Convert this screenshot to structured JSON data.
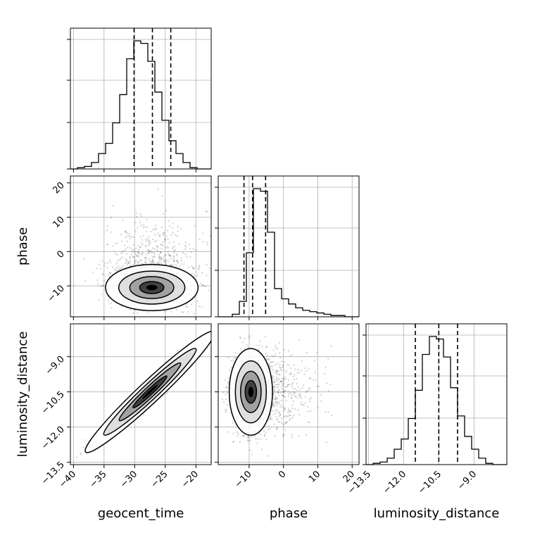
{
  "chart_data": {
    "type": "corner",
    "parameters": [
      "geocent_time",
      "phase",
      "luminosity_distance"
    ],
    "axis_labels": {
      "geocent_time": "geocent_time",
      "phase": "phase",
      "luminosity_distance": "luminosity_distance"
    },
    "ranges": {
      "geocent_time": [
        -40.5,
        -17.5
      ],
      "phase": [
        -19,
        22
      ],
      "luminosity_distance": [
        -13.6,
        -7.6
      ]
    },
    "ticks": {
      "geocent_time": {
        "values": [
          -40,
          -35,
          -30,
          -25,
          -20
        ],
        "labels": [
          "−40",
          "−35",
          "−30",
          "−25",
          "−20"
        ]
      },
      "phase_x": {
        "values": [
          -10,
          0,
          10,
          20
        ],
        "labels": [
          "−10",
          "0",
          "10",
          "20"
        ]
      },
      "phase_y": {
        "values": [
          -10,
          0,
          10,
          20
        ],
        "labels": [
          "−10",
          "0",
          "10",
          "20"
        ]
      },
      "luminosity_distance": {
        "values": [
          -13.5,
          -12.0,
          -10.5,
          -9.0
        ],
        "labels": [
          "−13.5",
          "−12.0",
          "−10.5",
          "−9.0"
        ]
      }
    },
    "histograms": {
      "geocent_time": {
        "edges_range": [
          -40.5,
          -17.5
        ],
        "counts": [
          0,
          1,
          2,
          5,
          12,
          20,
          36,
          58,
          86,
          100,
          98,
          84,
          60,
          38,
          22,
          12,
          5,
          1,
          0,
          0
        ],
        "quantiles": [
          -30.1,
          -27.1,
          -24.1
        ]
      },
      "phase": {
        "edges_range": [
          -19,
          22
        ],
        "counts": [
          0,
          0,
          2,
          12,
          50,
          100,
          98,
          66,
          22,
          14,
          10,
          7,
          5,
          4,
          3,
          2,
          1,
          1,
          0,
          0
        ],
        "quantiles": [
          -11.5,
          -9.0,
          -5.2
        ]
      },
      "luminosity_distance": {
        "edges_range": [
          -13.6,
          -7.6
        ],
        "counts": [
          0,
          1,
          2,
          5,
          12,
          20,
          36,
          58,
          86,
          100,
          98,
          84,
          60,
          38,
          22,
          12,
          5,
          1,
          0,
          0
        ],
        "quantiles": [
          -11.5,
          -10.5,
          -9.7
        ]
      }
    },
    "pairs": [
      {
        "x": "geocent_time",
        "y": "phase",
        "center": [
          -27.2,
          -10.5
        ],
        "spread": [
          3.6,
          3.2
        ],
        "correlation": 0.0
      },
      {
        "x": "geocent_time",
        "y": "luminosity_distance",
        "center": [
          -27.5,
          -10.5
        ],
        "spread": [
          3.6,
          0.88
        ],
        "correlation": 0.97
      },
      {
        "x": "phase",
        "y": "luminosity_distance",
        "center": [
          -9.5,
          -10.5
        ],
        "spread": [
          3.0,
          0.88
        ],
        "correlation": 0.05
      }
    ],
    "grid": true
  }
}
